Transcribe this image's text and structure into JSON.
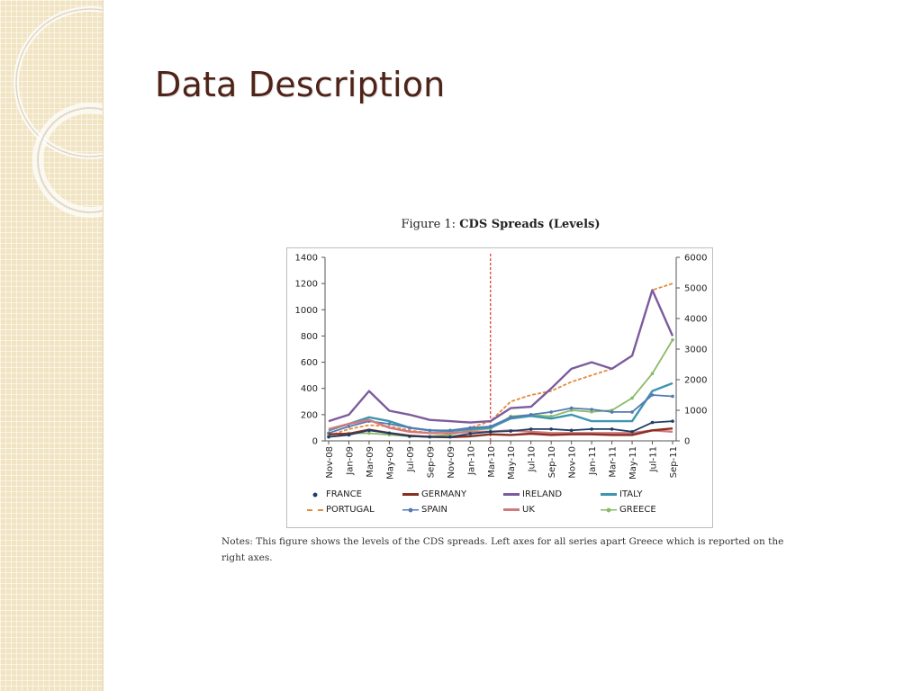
{
  "slide": {
    "title": "Data Description",
    "colors": {
      "title": "#4e2318",
      "band": "#f1e4c3",
      "ring": "#d9d2c2"
    }
  },
  "figure": {
    "caption_prefix": "Figure 1:",
    "caption_bold": "CDS Spreads (Levels)",
    "notes": "Notes: This figure shows the levels of the CDS spreads. Left axes for all series apart Greece which is reported on the right axes."
  },
  "chart_data": {
    "type": "line",
    "x": [
      "Nov-08",
      "Jan-09",
      "Mar-09",
      "May-09",
      "Jul-09",
      "Sep-09",
      "Nov-09",
      "Jan-10",
      "Mar-10",
      "May-10",
      "Jul-10",
      "Sep-10",
      "Nov-10",
      "Jan-11",
      "Mar-11",
      "May-11",
      "Jul-11",
      "Sep-11"
    ],
    "ylim_left": [
      0,
      1400
    ],
    "yticks_left": [
      0,
      200,
      400,
      600,
      800,
      1000,
      1200,
      1400
    ],
    "ylim_right": [
      0,
      6000
    ],
    "yticks_right": [
      0,
      1000,
      2000,
      3000,
      4000,
      5000,
      6000
    ],
    "grid": false,
    "legend_position": "bottom",
    "vertical_marker": {
      "x": "Mar-10",
      "style": "dashed",
      "color": "#e0302a"
    },
    "series": [
      {
        "name": "FRANCE",
        "axis": "left",
        "color": "#1d3f66",
        "style": "marker",
        "values": [
          30,
          45,
          80,
          60,
          35,
          30,
          30,
          55,
          70,
          75,
          90,
          90,
          80,
          90,
          90,
          70,
          140,
          150
        ]
      },
      {
        "name": "GERMANY",
        "axis": "left",
        "color": "#8b2f23",
        "style": "solid",
        "values": [
          50,
          55,
          85,
          60,
          40,
          30,
          28,
          35,
          50,
          45,
          55,
          45,
          50,
          50,
          45,
          45,
          80,
          95
        ]
      },
      {
        "name": "IRELAND",
        "axis": "left",
        "color": "#7c5b9e",
        "style": "solid",
        "values": [
          150,
          200,
          380,
          230,
          200,
          160,
          150,
          140,
          150,
          250,
          260,
          400,
          550,
          600,
          550,
          650,
          1150,
          800
        ]
      },
      {
        "name": "ITALY",
        "axis": "left",
        "color": "#3e95b1",
        "style": "solid",
        "values": [
          80,
          130,
          180,
          150,
          100,
          80,
          75,
          90,
          100,
          170,
          190,
          170,
          200,
          150,
          150,
          150,
          380,
          440
        ]
      },
      {
        "name": "PORTUGAL",
        "axis": "left",
        "color": "#e58b3a",
        "style": "dashed",
        "values": [
          40,
          90,
          120,
          110,
          80,
          60,
          70,
          100,
          150,
          300,
          350,
          380,
          450,
          500,
          550,
          650,
          1150,
          1200
        ]
      },
      {
        "name": "SPAIN",
        "axis": "left",
        "color": "#5579b1",
        "style": "marker",
        "values": [
          60,
          110,
          150,
          130,
          100,
          80,
          80,
          100,
          110,
          180,
          200,
          220,
          250,
          240,
          220,
          220,
          350,
          340
        ]
      },
      {
        "name": "UK",
        "axis": "left",
        "color": "#d17a7e",
        "style": "solid",
        "values": [
          90,
          130,
          160,
          100,
          70,
          60,
          60,
          70,
          70,
          80,
          70,
          60,
          60,
          60,
          60,
          60,
          80,
          70
        ]
      },
      {
        "name": "GREECE",
        "axis": "right",
        "color": "#8ab968",
        "style": "marker",
        "values": [
          200,
          250,
          250,
          200,
          150,
          150,
          200,
          350,
          400,
          800,
          850,
          800,
          1000,
          950,
          1000,
          1400,
          2200,
          3300
        ]
      }
    ]
  }
}
